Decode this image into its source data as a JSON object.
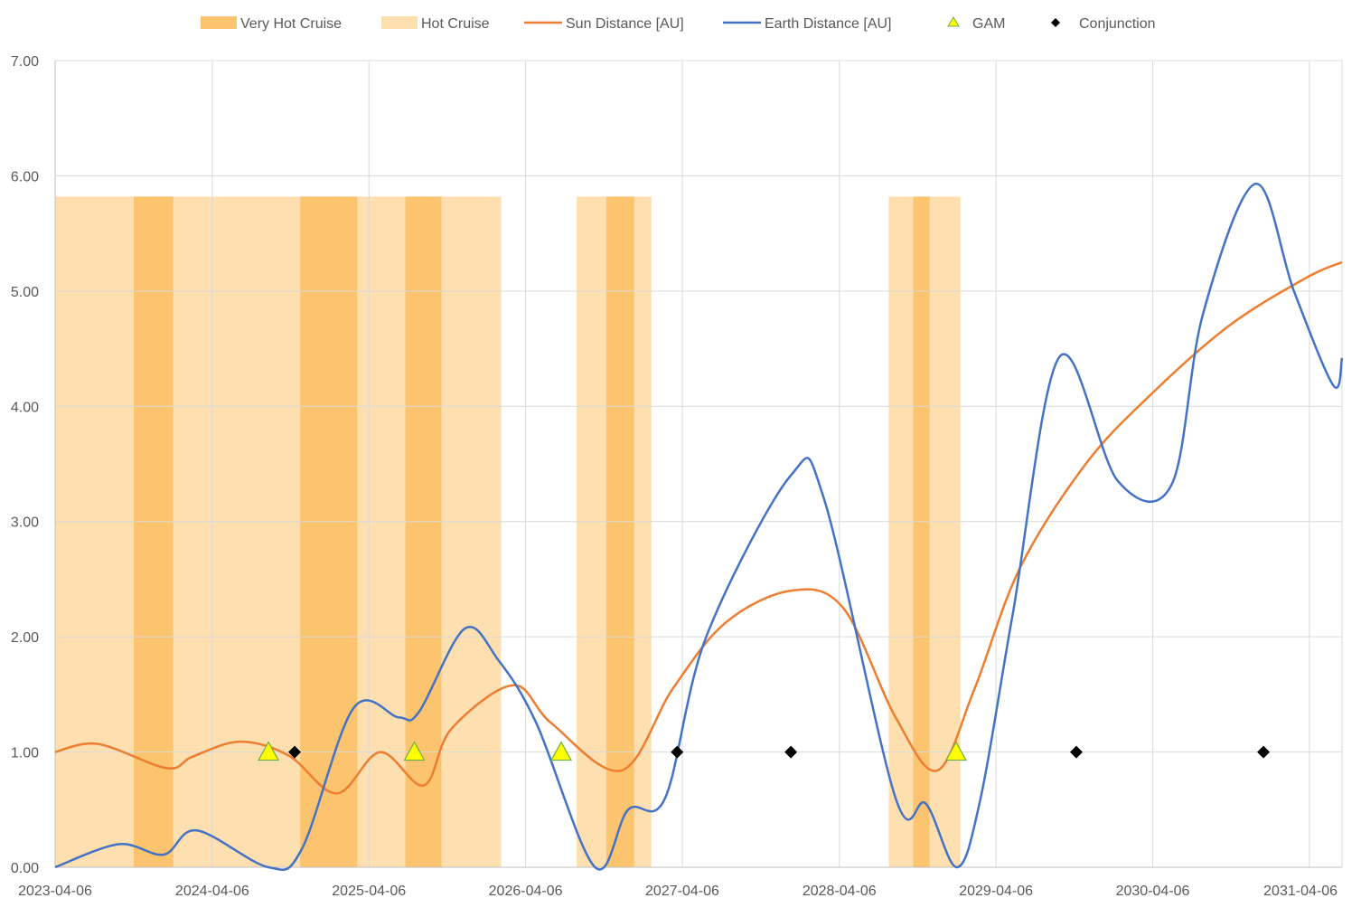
{
  "chart_data": {
    "type": "line",
    "x_axis": {
      "type": "date",
      "range": [
        "2023-04-06",
        "2031-06-21"
      ],
      "tick_labels": [
        "2023-04-06",
        "2024-04-06",
        "2025-04-06",
        "2026-04-06",
        "2027-04-06",
        "2028-04-06",
        "2029-04-06",
        "2030-04-06",
        "2031-04-06"
      ]
    },
    "y_axis": {
      "range": [
        0,
        7
      ],
      "tick_labels": [
        "0.00",
        "1.00",
        "2.00",
        "3.00",
        "4.00",
        "5.00",
        "6.00",
        "7.00"
      ]
    },
    "grid": {
      "vertical": true,
      "horizontal": true
    },
    "legend": {
      "position": "top",
      "entries": [
        {
          "label": "Very Hot Cruise",
          "symbol": "band",
          "color": "#FCC46E"
        },
        {
          "label": "Hot Cruise",
          "symbol": "band",
          "color": "#FDDFB0"
        },
        {
          "label": "Sun Distance [AU]",
          "symbol": "line",
          "color": "#ED7D31"
        },
        {
          "label": "Earth Distance [AU]",
          "symbol": "line",
          "color": "#4472C4"
        },
        {
          "label": "GAM",
          "symbol": "triangle",
          "color": "#FFFF00"
        },
        {
          "label": "Conjunction",
          "symbol": "diamond",
          "color": "#000000"
        }
      ]
    },
    "band_top_value": 5.82,
    "hot_cruise_periods": [
      [
        "2023-04-06",
        "2026-02-08"
      ],
      [
        "2026-08-03",
        "2027-01-24"
      ],
      [
        "2028-07-30",
        "2029-01-13"
      ]
    ],
    "very_hot_cruise_periods": [
      [
        "2023-10-06",
        "2024-01-06"
      ],
      [
        "2024-10-28",
        "2025-03-10"
      ],
      [
        "2025-06-30",
        "2025-09-22"
      ],
      [
        "2026-10-11",
        "2026-12-15"
      ],
      [
        "2028-09-25",
        "2028-11-02"
      ]
    ],
    "series": [
      {
        "name": "Sun Distance [AU]",
        "color": "#ED7D31",
        "x": [
          "2023-04-06",
          "2023-07-15",
          "2023-12-22",
          "2024-02-20",
          "2024-06-10",
          "2024-10-01",
          "2025-01-21",
          "2025-05-02",
          "2025-08-12",
          "2025-10-15",
          "2026-03-08",
          "2026-06-05",
          "2026-11-15",
          "2027-03-15",
          "2027-07-15",
          "2027-12-15",
          "2028-04-15",
          "2028-08-15",
          "2028-11-20",
          "2029-02-15",
          "2029-06-01",
          "2029-11-01",
          "2030-04-01",
          "2030-10-01",
          "2031-04-01",
          "2031-06-21"
        ],
        "y": [
          1.0,
          1.07,
          0.86,
          0.96,
          1.09,
          0.97,
          0.64,
          1.0,
          0.71,
          1.2,
          1.58,
          1.25,
          0.84,
          1.55,
          2.12,
          2.4,
          2.25,
          1.3,
          0.84,
          1.55,
          2.6,
          3.5,
          4.1,
          4.7,
          5.12,
          5.25
        ]
      },
      {
        "name": "Earth Distance [AU]",
        "color": "#4472C4",
        "x": [
          "2023-04-06",
          "2023-09-01",
          "2023-12-15",
          "2024-03-01",
          "2024-08-15",
          "2024-11-01",
          "2025-03-01",
          "2025-06-15",
          "2025-08-01",
          "2025-11-15",
          "2026-02-01",
          "2026-05-01",
          "2026-09-15",
          "2026-12-01",
          "2027-02-25",
          "2027-06-01",
          "2027-12-15",
          "2028-03-01",
          "2028-08-15",
          "2028-10-25",
          "2029-01-05",
          "2029-03-01",
          "2029-05-15",
          "2029-09-01",
          "2030-01-15",
          "2030-05-20",
          "2030-08-01",
          "2030-12-01",
          "2031-03-01",
          "2031-06-01",
          "2031-06-21"
        ],
        "y": [
          0.0,
          0.2,
          0.11,
          0.32,
          0.0,
          0.16,
          1.38,
          1.3,
          1.35,
          2.07,
          1.8,
          1.25,
          0.0,
          0.5,
          0.6,
          2.0,
          3.4,
          3.2,
          0.6,
          0.55,
          0.0,
          0.6,
          2.2,
          4.43,
          3.35,
          3.32,
          4.8,
          5.93,
          5.0,
          4.18,
          4.42
        ]
      }
    ],
    "gam_events": [
      {
        "date": "2024-08-15",
        "value": 1.0
      },
      {
        "date": "2025-07-21",
        "value": 1.0
      },
      {
        "date": "2026-06-28",
        "value": 1.0
      },
      {
        "date": "2029-01-03",
        "value": 1.0
      }
    ],
    "conjunctions": [
      {
        "date": "2024-10-15",
        "value": 1.0
      },
      {
        "date": "2027-03-25",
        "value": 1.0
      },
      {
        "date": "2027-12-15",
        "value": 1.0
      },
      {
        "date": "2029-10-10",
        "value": 1.0
      },
      {
        "date": "2030-12-20",
        "value": 1.0
      }
    ]
  }
}
